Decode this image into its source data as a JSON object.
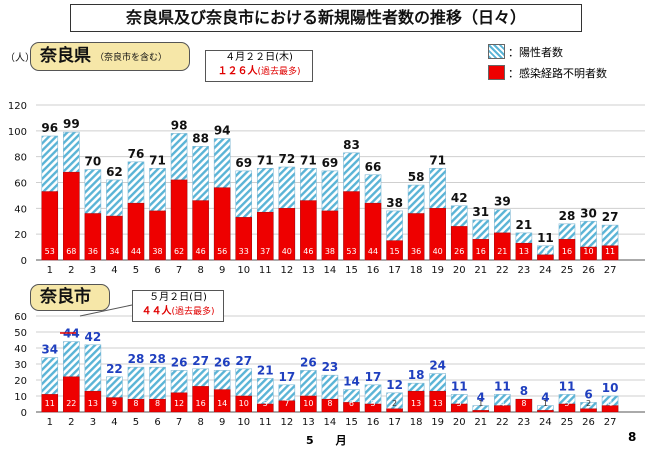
{
  "title": "奈良県及び奈良市における新規陽性者数の推移（日々）",
  "legend": {
    "positive": "：陽性者数",
    "unknown": "：感染経路不明者数"
  },
  "colors": {
    "positive_stripe": "#5ab4d6",
    "unknown": "#ee0000",
    "label_blue": "#1f3fbf",
    "box_fill": "#f6e7a8"
  },
  "nara_pref": {
    "label": "奈良県",
    "sublabel": "（奈良市を含む）",
    "note_date": "４月２２日(木)",
    "note_value": "１２６人",
    "note_suffix": "(過去最多)",
    "yunit": "（人）"
  },
  "nara_city": {
    "label": "奈良市",
    "note_date": "５月２日(日)",
    "note_value": "４４人",
    "note_suffix": "(過去最多)"
  },
  "x_axis": {
    "month_label": "5",
    "month_unit": "月",
    "end_label": "8"
  },
  "chart_data": [
    {
      "type": "bar",
      "name": "奈良県",
      "categories": [
        "1",
        "2",
        "3",
        "4",
        "5",
        "6",
        "7",
        "8",
        "9",
        "10",
        "11",
        "12",
        "13",
        "14",
        "15",
        "16",
        "17",
        "18",
        "19",
        "20",
        "21",
        "22",
        "23",
        "24",
        "25",
        "26",
        "27"
      ],
      "series": [
        {
          "name": "陽性者数",
          "values": [
            96,
            99,
            70,
            62,
            76,
            71,
            98,
            88,
            94,
            69,
            71,
            72,
            71,
            69,
            83,
            66,
            38,
            58,
            71,
            42,
            31,
            39,
            21,
            11,
            28,
            30,
            27
          ]
        },
        {
          "name": "感染経路不明者数",
          "values": [
            53,
            68,
            36,
            34,
            44,
            38,
            62,
            46,
            56,
            33,
            37,
            40,
            46,
            38,
            53,
            44,
            15,
            36,
            40,
            26,
            16,
            21,
            13,
            4,
            16,
            10,
            11
          ]
        }
      ],
      "ylim": [
        0,
        120
      ],
      "yticks": [
        0,
        20,
        40,
        60,
        80,
        100,
        120
      ]
    },
    {
      "type": "bar",
      "name": "奈良市",
      "categories": [
        "1",
        "2",
        "3",
        "4",
        "5",
        "6",
        "7",
        "8",
        "9",
        "10",
        "11",
        "12",
        "13",
        "14",
        "15",
        "16",
        "17",
        "18",
        "19",
        "20",
        "21",
        "22",
        "23",
        "24",
        "25",
        "26",
        "27"
      ],
      "series": [
        {
          "name": "陽性者数",
          "values": [
            34,
            44,
            42,
            22,
            28,
            28,
            26,
            27,
            26,
            27,
            21,
            17,
            26,
            23,
            14,
            17,
            12,
            18,
            24,
            11,
            4,
            11,
            8,
            4,
            11,
            6,
            10
          ]
        },
        {
          "name": "感染経路不明者数",
          "values": [
            11,
            22,
            13,
            9,
            8,
            8,
            12,
            16,
            14,
            10,
            5,
            7,
            10,
            8,
            6,
            5,
            2,
            13,
            13,
            5,
            1,
            4,
            8,
            1,
            5,
            2,
            4
          ]
        }
      ],
      "ylim": [
        0,
        60
      ],
      "yticks": [
        0,
        10,
        20,
        30,
        40,
        50,
        60
      ]
    }
  ]
}
